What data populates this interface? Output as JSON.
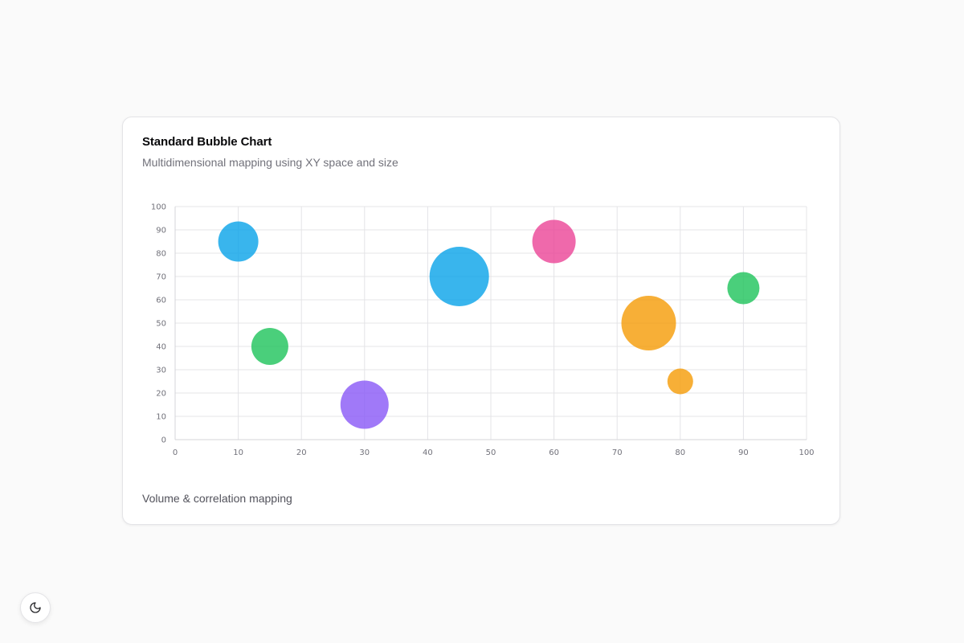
{
  "card": {
    "title": "Standard Bubble Chart",
    "subtitle": "Multidimensional mapping using XY space and size",
    "footer": "Volume & correlation mapping"
  },
  "theme_toggle": {
    "icon": "moon-icon"
  },
  "chart_data": {
    "type": "scatter",
    "subtype": "bubble",
    "title": "Standard Bubble Chart",
    "subtitle": "Multidimensional mapping using XY space and size",
    "xlabel": "",
    "ylabel": "",
    "xlim": [
      0,
      100
    ],
    "ylim": [
      0,
      100
    ],
    "xticks": [
      0,
      10,
      20,
      30,
      40,
      50,
      60,
      70,
      80,
      90,
      100
    ],
    "yticks": [
      0,
      10,
      20,
      30,
      40,
      50,
      60,
      70,
      80,
      90,
      100
    ],
    "grid": true,
    "legend": "none",
    "points": [
      {
        "x": 10,
        "y": 85,
        "size": 25,
        "color": "#0ea5e9"
      },
      {
        "x": 15,
        "y": 40,
        "size": 23,
        "color": "#22c55e"
      },
      {
        "x": 30,
        "y": 15,
        "size": 30,
        "color": "#8b5cf6"
      },
      {
        "x": 45,
        "y": 70,
        "size": 37,
        "color": "#0ea5e9"
      },
      {
        "x": 60,
        "y": 85,
        "size": 27,
        "color": "#ec4899"
      },
      {
        "x": 75,
        "y": 50,
        "size": 34,
        "color": "#f59e0b"
      },
      {
        "x": 80,
        "y": 25,
        "size": 16,
        "color": "#f59e0b"
      },
      {
        "x": 90,
        "y": 65,
        "size": 20,
        "color": "#22c55e"
      }
    ]
  }
}
